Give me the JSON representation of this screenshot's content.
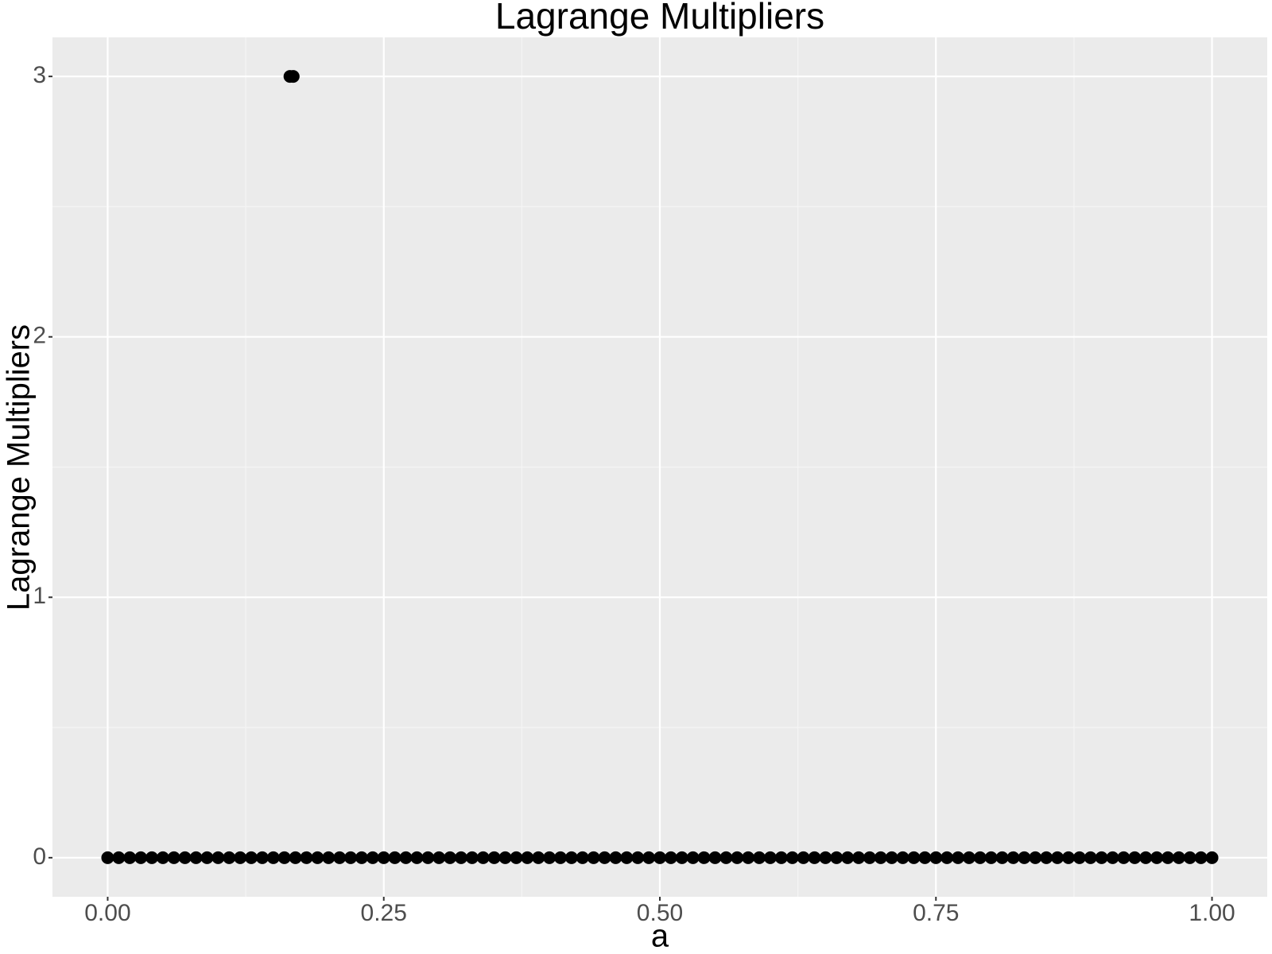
{
  "chart_data": {
    "type": "scatter",
    "title": "Lagrange Multipliers",
    "x_label": "a",
    "y_label": "Lagrange Multipliers",
    "x": [
      0,
      0.01,
      0.02,
      0.03,
      0.04,
      0.05,
      0.06,
      0.07,
      0.08,
      0.09,
      0.1,
      0.11,
      0.12,
      0.13,
      0.14,
      0.15,
      0.16,
      0.165,
      0.168,
      0.17,
      0.18,
      0.19,
      0.2,
      0.21,
      0.22,
      0.23,
      0.24,
      0.25,
      0.26,
      0.27,
      0.28,
      0.29,
      0.3,
      0.31,
      0.32,
      0.33,
      0.34,
      0.35,
      0.36,
      0.37,
      0.38,
      0.39,
      0.4,
      0.41,
      0.42,
      0.43,
      0.44,
      0.45,
      0.46,
      0.47,
      0.48,
      0.49,
      0.5,
      0.51,
      0.52,
      0.53,
      0.54,
      0.55,
      0.56,
      0.57,
      0.58,
      0.59,
      0.6,
      0.61,
      0.62,
      0.63,
      0.64,
      0.65,
      0.66,
      0.67,
      0.68,
      0.69,
      0.7,
      0.71,
      0.72,
      0.73,
      0.74,
      0.75,
      0.76,
      0.77,
      0.78,
      0.79,
      0.8,
      0.81,
      0.82,
      0.83,
      0.84,
      0.85,
      0.86,
      0.87,
      0.88,
      0.89,
      0.9,
      0.91,
      0.92,
      0.93,
      0.94,
      0.95,
      0.96,
      0.97,
      0.98,
      0.99,
      1.0
    ],
    "values": [
      0,
      0,
      0,
      0,
      0,
      0,
      0,
      0,
      0,
      0,
      0,
      0,
      0,
      0,
      0,
      0,
      0,
      3,
      3,
      0,
      0,
      0,
      0,
      0,
      0,
      0,
      0,
      0,
      0,
      0,
      0,
      0,
      0,
      0,
      0,
      0,
      0,
      0,
      0,
      0,
      0,
      0,
      0,
      0,
      0,
      0,
      0,
      0,
      0,
      0,
      0,
      0,
      0,
      0,
      0,
      0,
      0,
      0,
      0,
      0,
      0,
      0,
      0,
      0,
      0,
      0,
      0,
      0,
      0,
      0,
      0,
      0,
      0,
      0,
      0,
      0,
      0,
      0,
      0,
      0,
      0,
      0,
      0,
      0,
      0,
      0,
      0,
      0,
      0,
      0,
      0,
      0,
      0,
      0,
      0,
      0,
      0,
      0,
      0,
      0,
      0,
      0,
      0
    ],
    "color": "#000000",
    "xlim": [
      -0.05,
      1.05
    ],
    "ylim": [
      -0.15,
      3.15
    ],
    "xticks": [
      {
        "value": 0,
        "label": "0.00"
      },
      {
        "value": 0.25,
        "label": "0.25"
      },
      {
        "value": 0.5,
        "label": "0.50"
      },
      {
        "value": 0.75,
        "label": "0.75"
      },
      {
        "value": 1,
        "label": "1.00"
      }
    ],
    "yticks": [
      0,
      1,
      2,
      3
    ],
    "grid": true
  }
}
